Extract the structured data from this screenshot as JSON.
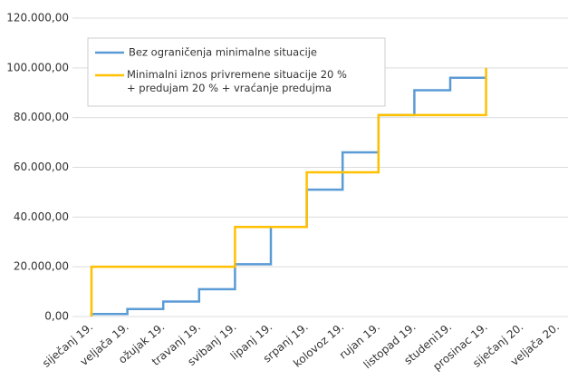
{
  "chart_data": {
    "type": "step",
    "categories": [
      "siječanj 19.",
      "veljača 19.",
      "ožujak 19.",
      "travanj 19.",
      "svibanj 19.",
      "lipanj 19.",
      "srpanj 19.",
      "kolovoz 19.",
      "rujan 19.",
      "listopad 19.",
      "studeni19.",
      "prosinac 19.",
      "siječanj 20.",
      "veljača 20."
    ],
    "series": [
      {
        "name": "Bez ograničenja minimalne situacije",
        "color": "#5b9bd5",
        "values": [
          1000,
          3000,
          6000,
          11000,
          21000,
          36000,
          51000,
          66000,
          81000,
          91000,
          96000,
          96000,
          null,
          null
        ]
      },
      {
        "name": "Minimalni iznos privremene situacije 20 % + predujam 20 % + vraćanje predujma",
        "color": "#ffc000",
        "values": [
          20000,
          20000,
          20000,
          20000,
          36000,
          36000,
          58000,
          58000,
          81000,
          81000,
          81000,
          100000,
          null,
          null
        ]
      }
    ],
    "ylim": [
      0,
      120000
    ],
    "yticks": [
      {
        "value": 0,
        "label": "0,00"
      },
      {
        "value": 20000,
        "label": "20.000,00"
      },
      {
        "value": 40000,
        "label": "40.000,00"
      },
      {
        "value": 60000,
        "label": "60.000,00"
      },
      {
        "value": 80000,
        "label": "80.000,00"
      },
      {
        "value": 100000,
        "label": "100.000,00"
      },
      {
        "value": 120000,
        "label": "120.000,00"
      }
    ],
    "grid": true,
    "legend": "upper left"
  }
}
